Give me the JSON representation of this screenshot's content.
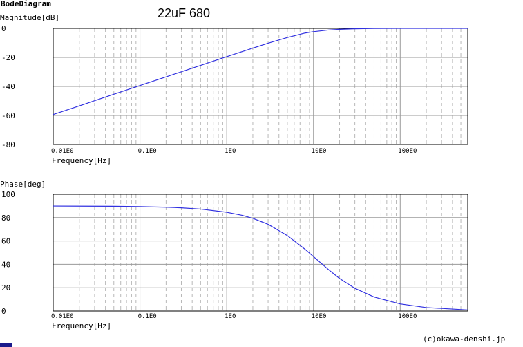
{
  "header": {
    "app_title": "BodeDiagram",
    "annotation": "22uF 680"
  },
  "footer": {
    "copyright": "(c)okawa-denshi.jp"
  },
  "colors": {
    "curve": "#3030e0",
    "grid_major": "#9a9a9a",
    "grid_minor": "#b8b8b8",
    "axis": "#000000",
    "corner_mark": "#1a1a8c"
  },
  "chart_data": [
    {
      "type": "line",
      "name": "magnitude",
      "title": "Magnitude[dB]",
      "xlabel": "Frequency[Hz]",
      "ylabel": "Magnitude[dB]",
      "x_scale": "log",
      "xlim": [
        0.01,
        600
      ],
      "ylim": [
        -80,
        0
      ],
      "grid": true,
      "x_tick_values": [
        0.01,
        0.1,
        1,
        10,
        100
      ],
      "x_tick_labels": [
        "0.01E0",
        "0.1E0",
        "1E0",
        "10E0",
        "100E0"
      ],
      "y_ticks": [
        0,
        -20,
        -40,
        -60,
        -80
      ],
      "y_tick_labels": [
        "0",
        "-20",
        "-40",
        "-60",
        "-80"
      ],
      "series": [
        {
          "x": [
            0.01,
            0.02,
            0.05,
            0.1,
            0.2,
            0.5,
            1,
            2,
            3,
            5,
            8,
            10,
            15,
            20,
            30,
            50,
            100,
            200,
            600
          ],
          "y": [
            -59.4,
            -53.4,
            -45.4,
            -39.4,
            -33.4,
            -25.5,
            -19.5,
            -13.6,
            -10.2,
            -6.3,
            -3.2,
            -2.3,
            -1.1,
            -0.65,
            -0.3,
            -0.1,
            0,
            0,
            0
          ]
        }
      ]
    },
    {
      "type": "line",
      "name": "phase",
      "title": "Phase[deg]",
      "xlabel": "Frequency[Hz]",
      "ylabel": "Phase[deg]",
      "x_scale": "log",
      "xlim": [
        0.01,
        600
      ],
      "ylim": [
        0,
        100
      ],
      "grid": true,
      "x_tick_values": [
        0.01,
        0.1,
        1,
        10,
        100
      ],
      "x_tick_labels": [
        "0.01E0",
        "0.1E0",
        "1E0",
        "10E0",
        "100E0"
      ],
      "y_ticks": [
        100,
        80,
        60,
        40,
        20,
        0
      ],
      "y_tick_labels": [
        "100",
        "80",
        "60",
        "40",
        "20",
        "0"
      ],
      "series": [
        {
          "x": [
            0.01,
            0.05,
            0.1,
            0.2,
            0.3,
            0.5,
            1,
            1.5,
            2,
            3,
            5,
            8,
            10.6,
            15,
            20,
            30,
            50,
            100,
            200,
            600
          ],
          "y": [
            89.9,
            89.7,
            89.4,
            88.9,
            88.4,
            87.3,
            84.6,
            82.0,
            79.4,
            74.3,
            64.6,
            52.9,
            45.0,
            35.3,
            27.9,
            19.5,
            12.0,
            6.1,
            3.0,
            1.0
          ]
        }
      ]
    }
  ]
}
